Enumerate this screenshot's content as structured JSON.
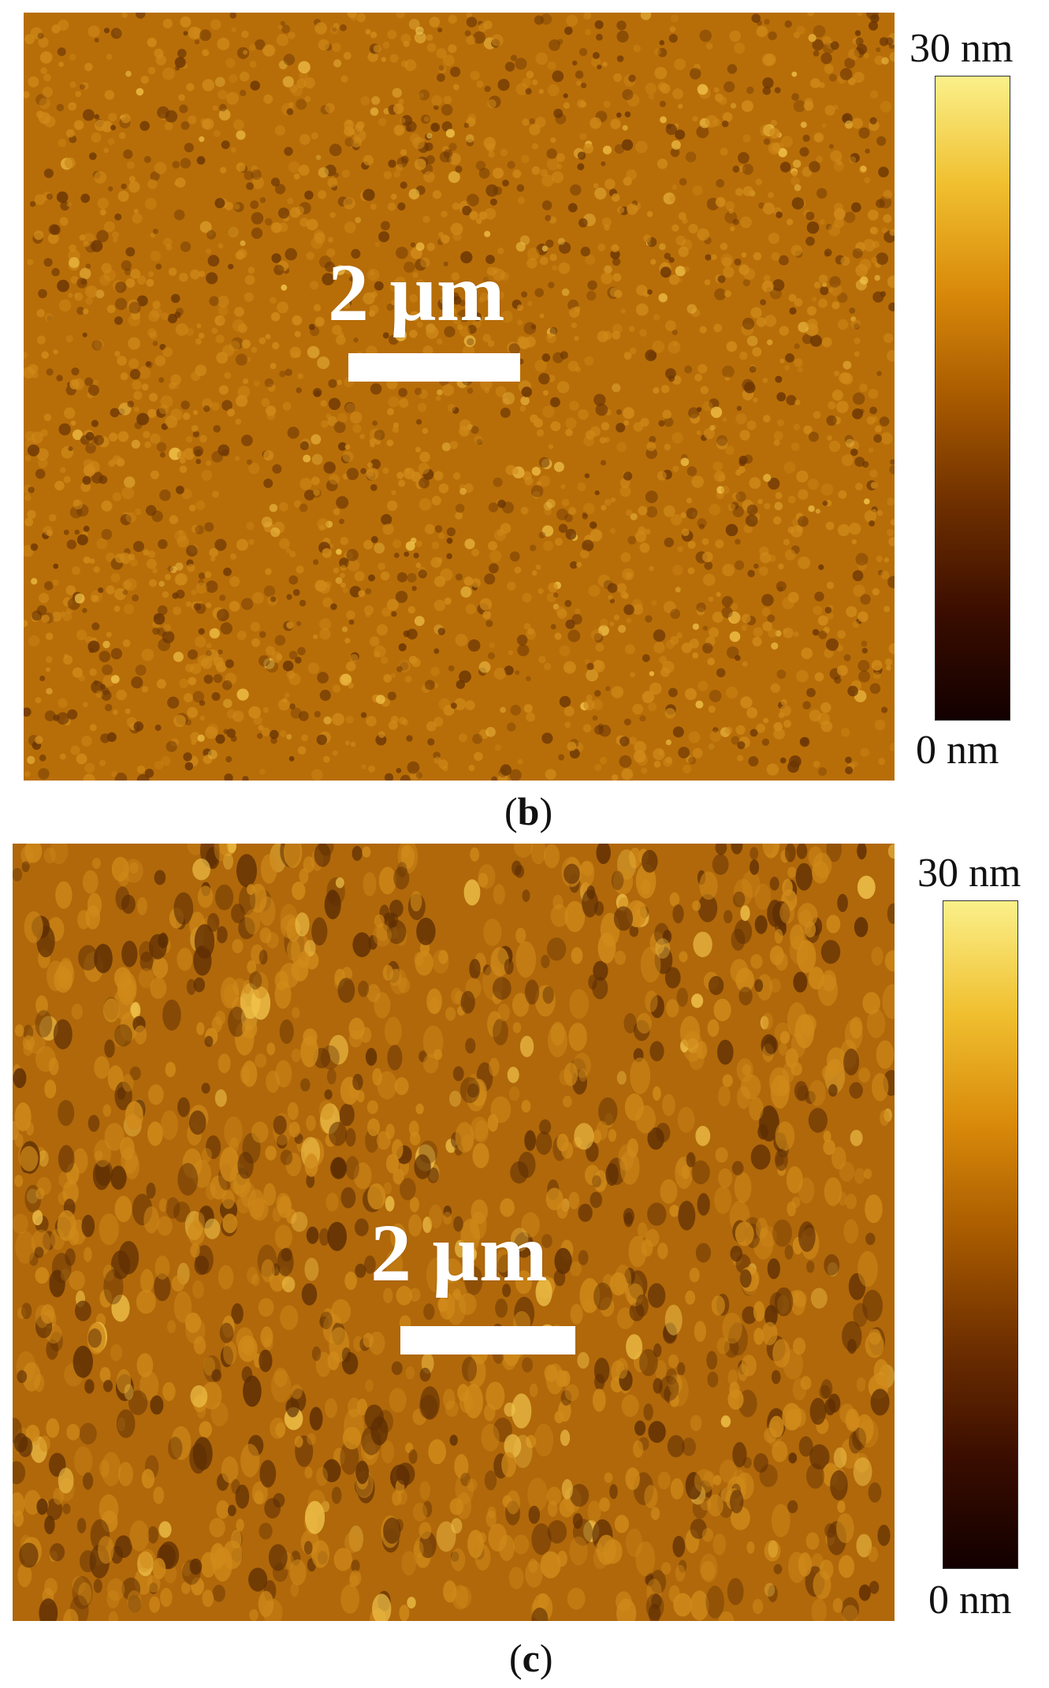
{
  "panels": [
    {
      "id": "b",
      "scale_bar_label": "2 µm",
      "colorbar": {
        "max_label": "30 nm",
        "min_label": "0 nm",
        "max_value": 30,
        "min_value": 0,
        "unit": "nm"
      },
      "caption": {
        "open": "(",
        "letter": "b",
        "close": ")"
      },
      "colors": {
        "base": "#b86e08",
        "dark": "#6b3604",
        "bright": "#f2c44a"
      }
    },
    {
      "id": "c",
      "scale_bar_label": "2 µm",
      "colorbar": {
        "max_label": "30 nm",
        "min_label": "0 nm",
        "max_value": 30,
        "min_value": 0,
        "unit": "nm"
      },
      "caption": {
        "open": "(",
        "letter": "c",
        "close": ")"
      },
      "colors": {
        "base": "#b0680a",
        "dark": "#5e2e03",
        "bright": "#f0c24a"
      }
    }
  ],
  "colormap": [
    "#120000",
    "#3a0d00",
    "#6e2f00",
    "#a85a00",
    "#d98a0a",
    "#f0c030",
    "#fbf08a"
  ]
}
